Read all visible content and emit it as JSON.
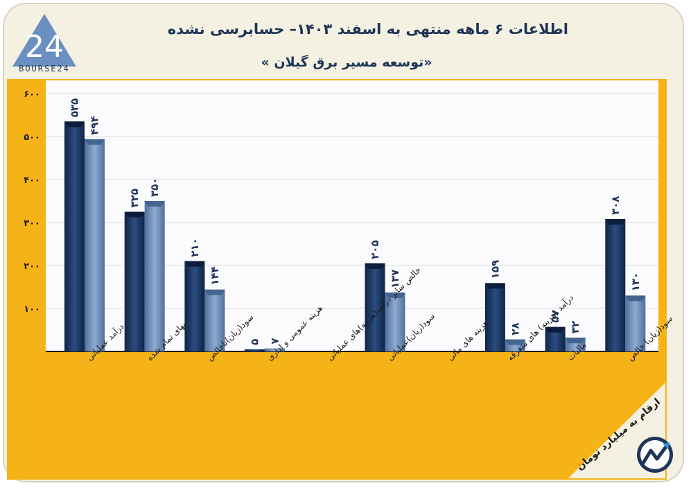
{
  "header": {
    "title": "اطلاعات ۶ ماهه منتهی به اسفند ۱۴۰۳– حسابرسی نشده",
    "subtitle": "«توسعه مسیر برق گیلان »",
    "logo_text": "BOURSE24",
    "logo_mark": "24"
  },
  "footer": {
    "note": "ارقام به میلیارد تومان"
  },
  "colors": {
    "background": "#f4f1e2",
    "plot_border": "#f5b318",
    "plot_bg": "#fbfbfd",
    "series_dark": "#18325f",
    "series_light": "#6f8fba",
    "text": "#1f3557"
  },
  "chart_data": {
    "type": "bar",
    "ylim": [
      0,
      600
    ],
    "yticks": [
      100,
      200,
      300,
      400,
      500,
      600
    ],
    "ytick_labels": [
      "۱۰۰",
      "۲۰۰",
      "۳۰۰",
      "۴۰۰",
      "۵۰۰",
      "۶۰۰"
    ],
    "grid": true,
    "categories": [
      "درآمد عملیاتی",
      "بهای تمام شده",
      "سود(زیان)ناخالص",
      "هزینه عمومی و اداری",
      "خالص سایر درآمد(هزینه)های عملیاتی",
      "سود(زیان)عملیاتی",
      "هزینه های مالی",
      "درآمد (هزینه) های متفرقه",
      "مالیات",
      "سود(زیان) خالص"
    ],
    "series": [
      {
        "values": [
          535,
          325,
          210,
          5,
          null,
          205,
          null,
          159,
          57,
          308
        ],
        "labels": [
          "۵۳۵",
          "۳۲۵",
          "۲۱۰",
          "۵",
          "",
          "۲۰۵",
          "",
          "۱۵۹",
          "۵۷",
          "۳۰۸"
        ]
      },
      {
        "values": [
          494,
          350,
          144,
          7,
          null,
          137,
          null,
          28,
          32,
          130
        ],
        "labels": [
          "۴۹۴",
          "۳۵۰",
          "۱۴۴",
          "۷",
          "",
          "۱۳۷",
          "",
          "۲۸",
          "۳۲",
          "۱۳۰"
        ]
      }
    ]
  }
}
